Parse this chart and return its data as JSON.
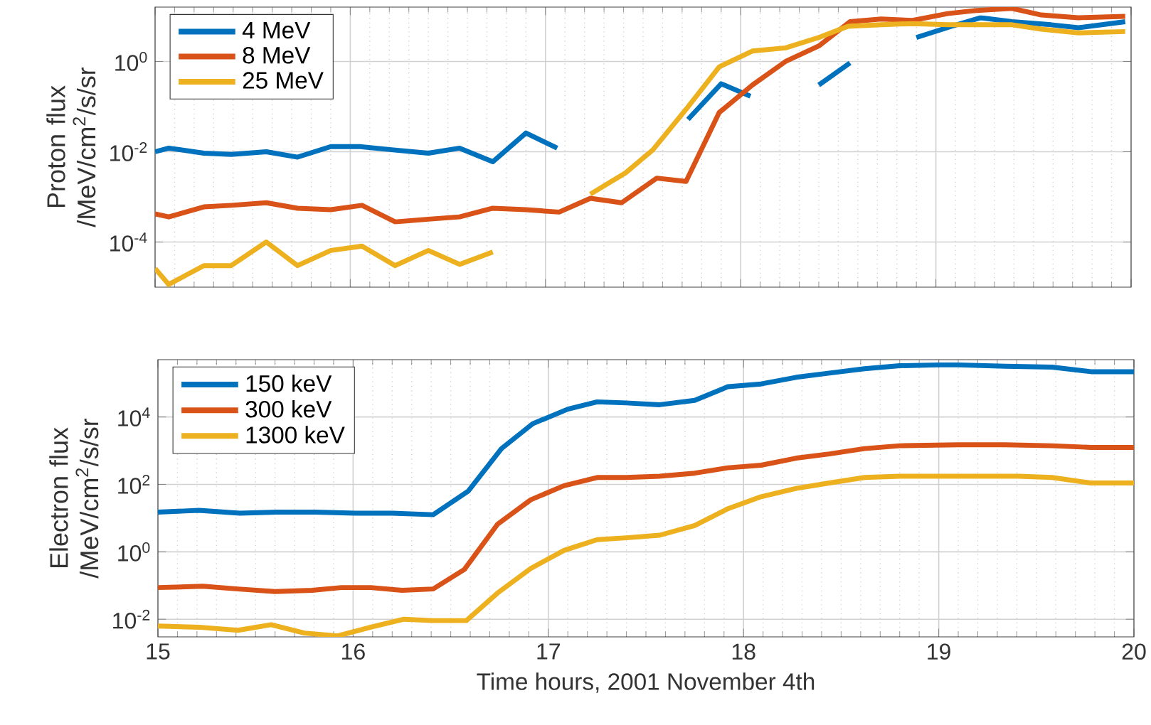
{
  "chart_data": [
    {
      "type": "line",
      "ylabel": "Proton flux /MeV/cm$^{2}$/s/sr",
      "log": "y",
      "grid": true,
      "legend": "top left",
      "tick_labels": "y",
      "xlim": [
        15,
        20
      ],
      "xticks": [
        15,
        16,
        17,
        18,
        19,
        20
      ],
      "ylim": [
        1e-05,
        16
      ],
      "yticks": [
        {
          "value": 0.0001,
          "label": "10$^{-4}$"
        },
        {
          "value": 0.01,
          "label": "10$^{-2}$"
        },
        {
          "value": 1,
          "label": "10$^{0}$"
        }
      ],
      "series": [
        {
          "name": "4 MeV",
          "color": "#0072bd",
          "x": [
            15.0,
            15.07,
            15.25,
            15.39,
            15.57,
            15.73,
            15.9,
            16.05,
            16.22,
            16.4,
            16.56,
            16.73,
            16.9,
            17.06,
            17.4,
            17.73,
            17.9,
            18.05,
            18.2,
            18.4,
            18.56,
            18.7,
            18.9,
            19.08,
            19.23,
            19.39,
            19.59,
            19.73,
            19.97
          ],
          "values": [
            0.01,
            0.012,
            0.0093,
            0.0087,
            0.01,
            0.0076,
            0.013,
            0.013,
            0.011,
            0.0093,
            0.012,
            0.006,
            0.026,
            0.012,
            null,
            0.052,
            0.32,
            0.17,
            null,
            0.3,
            0.93,
            null,
            3.4,
            6.0,
            9.3,
            7.6,
            6.5,
            5.6,
            7.6
          ]
        },
        {
          "name": "8 MeV",
          "color": "#d95319",
          "x": [
            15.0,
            15.07,
            15.25,
            15.39,
            15.57,
            15.73,
            15.9,
            16.06,
            16.23,
            16.4,
            16.56,
            16.73,
            16.9,
            17.07,
            17.23,
            17.39,
            17.57,
            17.72,
            17.89,
            18.06,
            18.23,
            18.4,
            18.56,
            18.72,
            18.88,
            19.06,
            19.21,
            19.39,
            19.54,
            19.73,
            19.97
          ],
          "values": [
            0.00042,
            0.00036,
            0.0006,
            0.00065,
            0.00074,
            0.00056,
            0.00052,
            0.00065,
            0.00028,
            0.00032,
            0.00036,
            0.00056,
            0.00052,
            0.00046,
            0.00093,
            0.00074,
            0.0026,
            0.0022,
            0.074,
            0.3,
            1.0,
            2.2,
            7.6,
            8.7,
            8.1,
            11.5,
            13.5,
            15,
            10.7,
            9.3,
            10
          ]
        },
        {
          "name": "25 MeV",
          "color": "#edb120",
          "x": [
            15.0,
            15.07,
            15.25,
            15.39,
            15.57,
            15.73,
            15.9,
            16.06,
            16.23,
            16.4,
            16.56,
            16.73,
            16.9,
            17.23,
            17.41,
            17.55,
            17.72,
            17.89,
            18.06,
            18.23,
            18.4,
            18.55,
            18.72,
            18.88,
            19.06,
            19.21,
            19.39,
            19.54,
            19.73,
            19.97
          ],
          "values": [
            2.6e-05,
            1.15e-05,
            3e-05,
            3e-05,
            0.0001,
            3e-05,
            6.5e-05,
            8.1e-05,
            3e-05,
            6.5e-05,
            3.2e-05,
            6e-05,
            null,
            0.00115,
            0.0034,
            0.011,
            0.087,
            0.76,
            1.7,
            2.0,
            3.4,
            6.0,
            6.5,
            6.9,
            6.5,
            6.5,
            6.5,
            5.2,
            4.3,
            4.6
          ]
        }
      ]
    },
    {
      "type": "line",
      "xlabel": "Time hours, 2001 November 4th",
      "ylabel": "Electron flux /MeV/cm$^{2}$/s/sr",
      "log": "y",
      "grid": true,
      "legend": "top left",
      "xlim": [
        15,
        20
      ],
      "xticks": [
        15,
        16,
        17,
        18,
        19,
        20
      ],
      "ylim": [
        0.003,
        500000
      ],
      "yticks": [
        {
          "value": 0.01,
          "label": "10$^{-2}$"
        },
        {
          "value": 1,
          "label": "10$^{0}$"
        },
        {
          "value": 100,
          "label": "10$^{2}$"
        },
        {
          "value": 10000,
          "label": "10$^{4}$"
        }
      ],
      "series": [
        {
          "name": "150 keV",
          "color": "#0072bd",
          "x": [
            15.0,
            15.21,
            15.42,
            15.61,
            15.81,
            16.01,
            16.2,
            16.41,
            16.59,
            16.76,
            16.92,
            17.1,
            17.25,
            17.4,
            17.57,
            17.75,
            17.92,
            18.09,
            18.27,
            18.44,
            18.62,
            18.8,
            19.0,
            19.1,
            19.34,
            19.58,
            19.78,
            20.0
          ],
          "values": [
            15,
            17,
            14,
            15,
            15,
            14,
            14,
            12.6,
            63,
            1150,
            6300,
            17000,
            28000,
            26000,
            23000,
            31000,
            79000,
            95000,
            150000,
            200000,
            270000,
            330000,
            350000,
            350000,
            320000,
            300000,
            220000,
            220000
          ]
        },
        {
          "name": "300 keV",
          "color": "#d95319",
          "x": [
            15.0,
            15.23,
            15.41,
            15.6,
            15.79,
            15.94,
            16.09,
            16.25,
            16.41,
            16.57,
            16.74,
            16.91,
            17.08,
            17.25,
            17.4,
            17.57,
            17.75,
            17.92,
            18.09,
            18.27,
            18.44,
            18.62,
            18.8,
            19.1,
            19.34,
            19.58,
            19.78,
            20.0
          ],
          "values": [
            0.087,
            0.095,
            0.079,
            0.066,
            0.072,
            0.087,
            0.087,
            0.072,
            0.079,
            0.3,
            6.6,
            35,
            91,
            160,
            160,
            175,
            215,
            310,
            370,
            600,
            800,
            1150,
            1400,
            1500,
            1500,
            1400,
            1250,
            1250
          ]
        },
        {
          "name": "1300 keV",
          "color": "#edb120",
          "x": [
            15.0,
            15.21,
            15.41,
            15.58,
            15.75,
            15.92,
            16.09,
            16.26,
            16.41,
            16.58,
            16.74,
            16.91,
            17.08,
            17.25,
            17.4,
            17.57,
            17.75,
            17.92,
            18.09,
            18.27,
            18.44,
            18.62,
            18.8,
            19.0,
            19.24,
            19.41,
            19.58,
            19.78,
            20.0
          ],
          "values": [
            0.0063,
            0.0058,
            0.0047,
            0.0069,
            0.0039,
            0.0032,
            0.0058,
            0.01,
            0.0091,
            0.0091,
            0.06,
            0.32,
            1.1,
            2.3,
            2.6,
            3.1,
            6.0,
            19,
            43,
            76,
            110,
            160,
            175,
            175,
            175,
            175,
            160,
            110,
            110
          ]
        }
      ]
    }
  ]
}
